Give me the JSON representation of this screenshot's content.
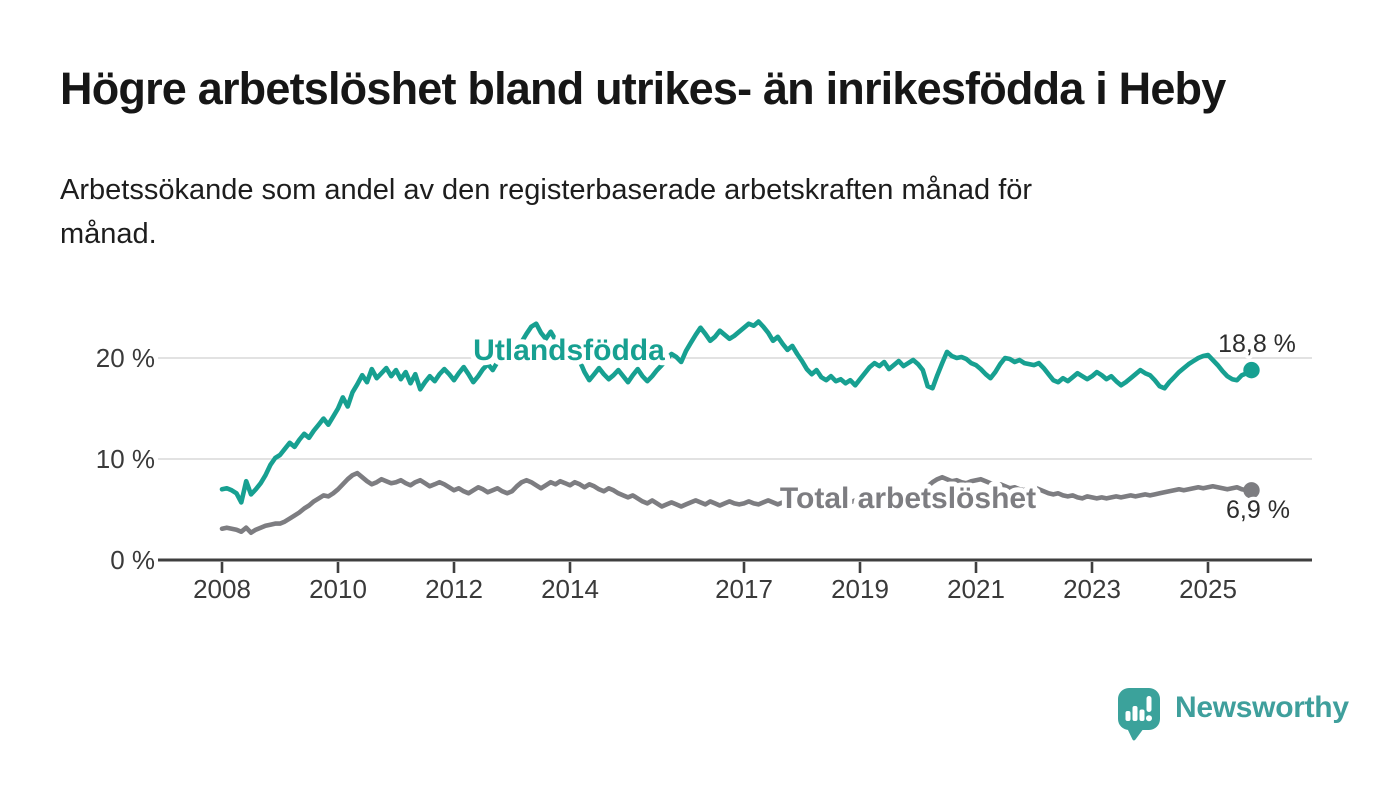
{
  "title": "Högre arbetslöshet bland utrikes- än inrikesfödda i Heby",
  "subtitle": {
    "lines": [
      "Arbetssökande som andel av den registerbaserade arbetskraften månad för",
      "månad."
    ]
  },
  "colors": {
    "teal_series": "#17a091",
    "gray_series": "#7d7d81",
    "gridline": "#d9d9d9",
    "axis": "#3f3f3f",
    "tick_text": "#3a3a3a",
    "value_label_text": "#2d2d2d",
    "logo_teal": "#3f9f9c",
    "background": "#ffffff"
  },
  "chart_data": {
    "type": "line",
    "title": "Högre arbetslöshet bland utrikes- än inrikesfödda i Heby",
    "xlabel": "",
    "ylabel": "",
    "grid": "horizontal",
    "legend": "inline-labels",
    "x_start": "2008-01",
    "frequency": "monthly",
    "points_per_year": 12,
    "ylim": [
      0,
      26
    ],
    "y_ticks": [
      0,
      10,
      20
    ],
    "y_tick_labels": [
      "0 %",
      "10 %",
      "20 %"
    ],
    "x_tick_years": [
      2008,
      2010,
      2012,
      2014,
      2017,
      2019,
      2021,
      2023,
      2025
    ],
    "x_tick_labels": [
      "2008",
      "2010",
      "2012",
      "2014",
      "2017",
      "2019",
      "2021",
      "2023",
      "2025"
    ],
    "series": [
      {
        "name": "Utlandsfödda",
        "color": "#17a091",
        "end_label": "18,8 %",
        "end_value": 18.8,
        "values": [
          7.0,
          7.1,
          6.9,
          6.6,
          5.7,
          7.8,
          6.5,
          7.0,
          7.6,
          8.4,
          9.4,
          10.1,
          10.4,
          11.0,
          11.6,
          11.2,
          11.9,
          12.5,
          12.1,
          12.8,
          13.4,
          14.0,
          13.4,
          14.2,
          15.0,
          16.1,
          15.2,
          16.6,
          17.4,
          18.3,
          17.6,
          18.9,
          18.0,
          18.5,
          19.0,
          18.2,
          18.8,
          17.9,
          18.6,
          17.5,
          18.4,
          16.9,
          17.6,
          18.2,
          17.7,
          18.4,
          18.9,
          18.4,
          17.8,
          18.5,
          19.1,
          18.4,
          17.6,
          18.2,
          18.9,
          19.4,
          18.8,
          19.6,
          20.1,
          19.7,
          20.3,
          20.9,
          21.6,
          22.4,
          23.1,
          23.4,
          22.5,
          21.9,
          22.6,
          21.8,
          21.3,
          21.9,
          21.4,
          20.6,
          19.7,
          18.6,
          17.8,
          18.4,
          19.0,
          18.4,
          17.9,
          18.3,
          18.8,
          18.2,
          17.6,
          18.3,
          18.9,
          18.2,
          17.7,
          18.2,
          18.8,
          19.3,
          19.9,
          20.4,
          20.1,
          19.6,
          20.7,
          21.5,
          22.3,
          23.0,
          22.4,
          21.7,
          22.1,
          22.7,
          22.3,
          21.9,
          22.2,
          22.6,
          23.0,
          23.4,
          23.2,
          23.6,
          23.1,
          22.5,
          21.7,
          22.1,
          21.4,
          20.8,
          21.2,
          20.4,
          19.7,
          18.9,
          18.4,
          18.8,
          18.1,
          17.8,
          18.2,
          17.7,
          17.9,
          17.5,
          17.8,
          17.3,
          17.9,
          18.5,
          19.1,
          19.5,
          19.2,
          19.6,
          18.9,
          19.3,
          19.7,
          19.2,
          19.5,
          19.8,
          19.4,
          18.8,
          17.2,
          17.0,
          18.3,
          19.5,
          20.6,
          20.2,
          20.0,
          20.1,
          19.9,
          19.5,
          19.3,
          18.9,
          18.4,
          18.0,
          18.6,
          19.4,
          20.0,
          19.9,
          19.6,
          19.8,
          19.5,
          19.4,
          19.3,
          19.5,
          19.0,
          18.4,
          17.8,
          17.6,
          18.0,
          17.7,
          18.1,
          18.5,
          18.2,
          17.9,
          18.2,
          18.6,
          18.3,
          17.9,
          18.2,
          17.7,
          17.3,
          17.6,
          18.0,
          18.4,
          18.8,
          18.5,
          18.3,
          17.8,
          17.2,
          17.0,
          17.6,
          18.1,
          18.6,
          19.0,
          19.4,
          19.7,
          20.0,
          20.2,
          20.3,
          19.8,
          19.3,
          18.7,
          18.2,
          17.9,
          17.8,
          18.3,
          18.5,
          18.8
        ]
      },
      {
        "name": "Total arbetslöshet",
        "color": "#7d7d81",
        "end_label": "6,9 %",
        "end_value": 6.9,
        "values": [
          3.1,
          3.2,
          3.1,
          3.0,
          2.8,
          3.2,
          2.7,
          3.0,
          3.2,
          3.4,
          3.5,
          3.6,
          3.6,
          3.8,
          4.1,
          4.4,
          4.7,
          5.1,
          5.4,
          5.8,
          6.1,
          6.4,
          6.3,
          6.6,
          7.0,
          7.5,
          8.0,
          8.4,
          8.6,
          8.2,
          7.8,
          7.5,
          7.7,
          8.0,
          7.8,
          7.6,
          7.7,
          7.9,
          7.6,
          7.4,
          7.7,
          7.9,
          7.6,
          7.3,
          7.5,
          7.7,
          7.5,
          7.2,
          6.9,
          7.1,
          6.8,
          6.6,
          6.9,
          7.2,
          7.0,
          6.7,
          6.9,
          7.1,
          6.8,
          6.6,
          6.8,
          7.3,
          7.7,
          7.9,
          7.7,
          7.4,
          7.1,
          7.4,
          7.7,
          7.5,
          7.8,
          7.6,
          7.4,
          7.7,
          7.5,
          7.2,
          7.5,
          7.3,
          7.0,
          6.8,
          7.1,
          6.9,
          6.6,
          6.4,
          6.2,
          6.4,
          6.1,
          5.8,
          5.6,
          5.9,
          5.6,
          5.3,
          5.5,
          5.7,
          5.5,
          5.3,
          5.5,
          5.7,
          5.9,
          5.7,
          5.5,
          5.8,
          5.6,
          5.4,
          5.6,
          5.8,
          5.6,
          5.5,
          5.6,
          5.8,
          5.6,
          5.5,
          5.7,
          5.9,
          5.7,
          5.5,
          5.7,
          5.9,
          5.8,
          5.6,
          5.5,
          5.7,
          5.5,
          5.4,
          5.6,
          5.8,
          5.6,
          5.4,
          5.6,
          5.8,
          5.7,
          5.9,
          6.0,
          6.2,
          6.0,
          5.9,
          6.1,
          6.3,
          6.1,
          6.0,
          6.2,
          6.4,
          6.3,
          6.5,
          6.6,
          6.9,
          7.3,
          7.7,
          8.0,
          8.2,
          8.0,
          7.8,
          7.9,
          7.7,
          7.6,
          7.8,
          7.9,
          8.0,
          7.8,
          7.6,
          7.4,
          7.5,
          7.3,
          7.1,
          7.2,
          7.0,
          6.9,
          7.1,
          7.2,
          7.0,
          6.8,
          6.6,
          6.5,
          6.6,
          6.4,
          6.3,
          6.4,
          6.2,
          6.1,
          6.3,
          6.2,
          6.1,
          6.2,
          6.1,
          6.2,
          6.3,
          6.2,
          6.3,
          6.4,
          6.3,
          6.4,
          6.5,
          6.4,
          6.5,
          6.6,
          6.7,
          6.8,
          6.9,
          7.0,
          6.9,
          7.0,
          7.1,
          7.2,
          7.1,
          7.2,
          7.3,
          7.2,
          7.1,
          7.0,
          7.1,
          7.2,
          7.0,
          6.9,
          6.9
        ]
      }
    ]
  },
  "logo": {
    "name": "Newsworthy"
  }
}
